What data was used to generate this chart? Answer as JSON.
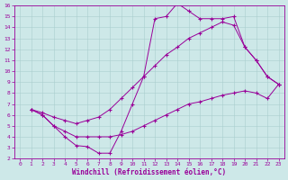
{
  "xlabel": "Windchill (Refroidissement éolien,°C)",
  "background_color": "#cde8e8",
  "grid_color": "#aacece",
  "line_color": "#990099",
  "xlim": [
    -0.5,
    23.5
  ],
  "ylim": [
    2,
    16
  ],
  "xticks": [
    0,
    1,
    2,
    3,
    4,
    5,
    6,
    7,
    8,
    9,
    10,
    11,
    12,
    13,
    14,
    15,
    16,
    17,
    18,
    19,
    20,
    21,
    22,
    23
  ],
  "yticks": [
    2,
    3,
    4,
    5,
    6,
    7,
    8,
    9,
    10,
    11,
    12,
    13,
    14,
    15,
    16
  ],
  "line1_x": [
    1,
    2,
    3,
    4,
    5,
    6,
    7,
    8,
    9,
    10,
    11,
    12,
    13,
    14,
    15,
    16,
    17,
    18,
    19,
    20,
    21,
    22,
    23
  ],
  "line1_y": [
    6.5,
    6.0,
    5.0,
    4.0,
    3.2,
    3.1,
    2.5,
    2.5,
    4.5,
    7.0,
    9.5,
    14.8,
    15.0,
    16.2,
    15.5,
    14.8,
    14.8,
    14.8,
    15.0,
    12.2,
    11.0,
    9.5,
    8.8
  ],
  "line2_x": [
    1,
    2,
    3,
    4,
    5,
    6,
    7,
    8,
    9,
    10,
    11,
    12,
    13,
    14,
    15,
    16,
    17,
    18,
    19,
    20,
    21,
    22,
    23
  ],
  "line2_y": [
    6.5,
    6.2,
    5.8,
    5.5,
    5.2,
    5.5,
    5.8,
    6.5,
    7.5,
    8.5,
    9.5,
    10.5,
    11.5,
    12.2,
    13.0,
    13.5,
    14.0,
    14.5,
    14.2,
    12.2,
    11.0,
    9.5,
    8.8
  ],
  "line3_x": [
    1,
    2,
    3,
    4,
    5,
    6,
    7,
    8,
    9,
    10,
    11,
    12,
    13,
    14,
    15,
    16,
    17,
    18,
    19,
    20,
    21,
    22,
    23
  ],
  "line3_y": [
    6.5,
    6.0,
    5.0,
    4.5,
    4.0,
    4.0,
    4.0,
    4.0,
    4.2,
    4.5,
    5.0,
    5.5,
    6.0,
    6.5,
    7.0,
    7.2,
    7.5,
    7.8,
    8.0,
    8.2,
    8.0,
    7.5,
    8.8
  ]
}
